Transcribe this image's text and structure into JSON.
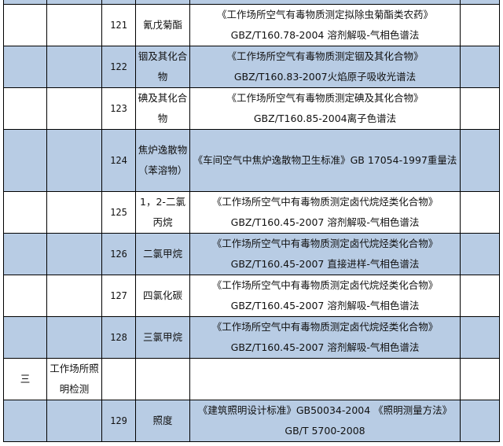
{
  "colors": {
    "band": "#b8cce4",
    "border": "#000000"
  },
  "rows": [
    {
      "no": "121",
      "item": "氰戊菊酯",
      "method": [
        "《工作场所空气有毒物质测定拟除虫菊酯类农药》",
        "GBZ/T160.78-2004 溶剂解吸-气相色谱法"
      ],
      "blue": false
    },
    {
      "no": "122",
      "item": "铟及其化合物",
      "method": [
        "《工作场所空气有毒物质测定铟及其化合物》",
        "GBZ/T160.83-2007火焰原子吸收光谱法"
      ],
      "blue": true
    },
    {
      "no": "123",
      "item": "碘及其化合物",
      "method": [
        "《工作场所空气有毒物质测定碘及其化合物》",
        "GBZ/T160.85-2004离子色谱法"
      ],
      "blue": false
    },
    {
      "no": "124",
      "item": "焦炉逸散物（苯溶物）",
      "method": [
        "《车间空气中焦炉逸散物卫生标准》GB 17054-1997重量法"
      ],
      "blue": true
    },
    {
      "no": "125",
      "item": "1，2-二氯丙烷",
      "method": [
        "《工作场所空气中有毒物质测定卤代烷烃类化合物》",
        "GBZ/T160.45-2007 溶剂解吸-气相色谱法"
      ],
      "blue": false
    },
    {
      "no": "126",
      "item": "二氯甲烷",
      "method": [
        "《工作场所空气中有毒物质测定卤代烷烃类化合物》",
        "GBZ/T160.45-2007 直接进样-气相色谱法"
      ],
      "blue": true
    },
    {
      "no": "127",
      "item": "四氯化碳",
      "method": [
        "《工作场所空气中有毒物质测定卤代烷烃类化合物》",
        "GBZ/T160.45-2007 溶剂解吸-气相色谱法"
      ],
      "blue": false
    },
    {
      "no": "128",
      "item": "三氯甲烷",
      "method": [
        "《工作场所空气中有毒物质测定卤代烷烃类化合物》",
        "GBZ/T160.45-2007 溶剂解吸-气相色谱法"
      ],
      "blue": true
    }
  ],
  "section": {
    "index": "三",
    "title": "工作场所照明检测"
  },
  "last": {
    "no": "129",
    "item": "照度",
    "method": [
      "《建筑照明设计标准》GB50034-2004 《照明测量方法》",
      "GB/T 5700-2008"
    ]
  }
}
